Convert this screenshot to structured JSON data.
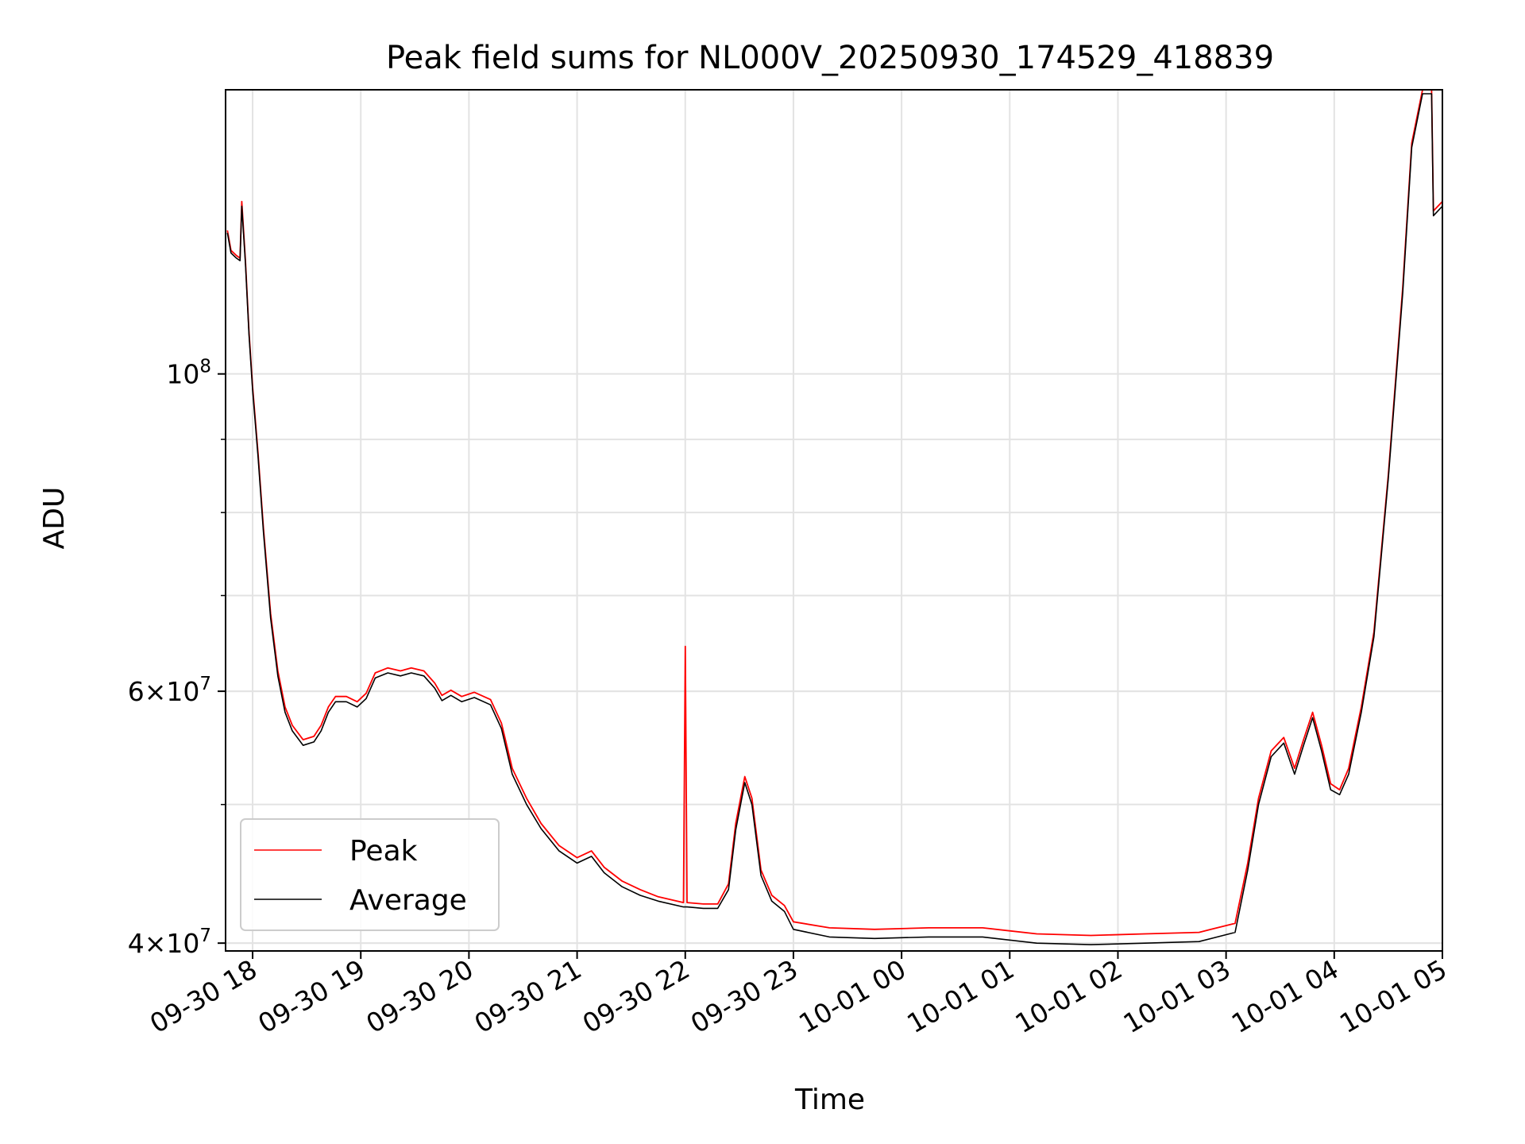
{
  "chart_data": {
    "type": "line",
    "title": "Peak field sums for NL000V_20250930_174529_418839",
    "xlabel": "Time",
    "ylabel": "ADU",
    "yscale": "log",
    "grid": true,
    "legend_position": "lower-left",
    "xlim": [
      "2025-09-30 17:45",
      "2025-10-01 05:00"
    ],
    "ylim": [
      39500000,
      158000000
    ],
    "x_ticks": [
      {
        "value": "2025-09-30 18:00",
        "label": "09-30 18"
      },
      {
        "value": "2025-09-30 19:00",
        "label": "09-30 19"
      },
      {
        "value": "2025-09-30 20:00",
        "label": "09-30 20"
      },
      {
        "value": "2025-09-30 21:00",
        "label": "09-30 21"
      },
      {
        "value": "2025-09-30 22:00",
        "label": "09-30 22"
      },
      {
        "value": "2025-09-30 23:00",
        "label": "09-30 23"
      },
      {
        "value": "2025-10-01 00:00",
        "label": "10-01 00"
      },
      {
        "value": "2025-10-01 01:00",
        "label": "10-01 01"
      },
      {
        "value": "2025-10-01 02:00",
        "label": "10-01 02"
      },
      {
        "value": "2025-10-01 03:00",
        "label": "10-01 03"
      },
      {
        "value": "2025-10-01 04:00",
        "label": "10-01 04"
      },
      {
        "value": "2025-10-01 05:00",
        "label": "10-01 05"
      }
    ],
    "y_ticks_major": [
      {
        "value": 100000000,
        "base": "10",
        "exp": "8"
      },
      {
        "value": 60000000,
        "mant": "6",
        "exp": "7"
      },
      {
        "value": 40000000,
        "mant": "4",
        "exp": "7"
      }
    ],
    "y_ticks_minor": [
      40000000,
      50000000,
      60000000,
      70000000,
      80000000,
      90000000
    ],
    "series": [
      {
        "name": "Peak",
        "color": "#ff0000",
        "points": [
          [
            "2025-09-30 17:46",
            126000000
          ],
          [
            "2025-09-30 17:48",
            122000000
          ],
          [
            "2025-09-30 17:51",
            121000000
          ],
          [
            "2025-09-30 17:53",
            120500000
          ],
          [
            "2025-09-30 17:54",
            132000000
          ],
          [
            "2025-09-30 17:56",
            120000000
          ],
          [
            "2025-09-30 17:58",
            107000000
          ],
          [
            "2025-09-30 18:00",
            98000000
          ],
          [
            "2025-09-30 18:03",
            88000000
          ],
          [
            "2025-09-30 18:06",
            78000000
          ],
          [
            "2025-09-30 18:10",
            68000000
          ],
          [
            "2025-09-30 18:14",
            62000000
          ],
          [
            "2025-09-30 18:18",
            58500000
          ],
          [
            "2025-09-30 18:22",
            56800000
          ],
          [
            "2025-09-30 18:28",
            55500000
          ],
          [
            "2025-09-30 18:34",
            55800000
          ],
          [
            "2025-09-30 18:38",
            56800000
          ],
          [
            "2025-09-30 18:42",
            58500000
          ],
          [
            "2025-09-30 18:46",
            59500000
          ],
          [
            "2025-09-30 18:52",
            59500000
          ],
          [
            "2025-09-30 18:58",
            59000000
          ],
          [
            "2025-09-30 19:03",
            59800000
          ],
          [
            "2025-09-30 19:08",
            61800000
          ],
          [
            "2025-09-30 19:15",
            62300000
          ],
          [
            "2025-09-30 19:22",
            62000000
          ],
          [
            "2025-09-30 19:28",
            62300000
          ],
          [
            "2025-09-30 19:35",
            62000000
          ],
          [
            "2025-09-30 19:41",
            60800000
          ],
          [
            "2025-09-30 19:45",
            59600000
          ],
          [
            "2025-09-30 19:50",
            60100000
          ],
          [
            "2025-09-30 19:56",
            59500000
          ],
          [
            "2025-09-30 20:03",
            59900000
          ],
          [
            "2025-09-30 20:12",
            59200000
          ],
          [
            "2025-09-30 20:18",
            57000000
          ],
          [
            "2025-09-30 20:24",
            53000000
          ],
          [
            "2025-09-30 20:32",
            50500000
          ],
          [
            "2025-09-30 20:40",
            48500000
          ],
          [
            "2025-09-30 20:50",
            46800000
          ],
          [
            "2025-09-30 21:00",
            45900000
          ],
          [
            "2025-09-30 21:08",
            46400000
          ],
          [
            "2025-09-30 21:15",
            45200000
          ],
          [
            "2025-09-30 21:25",
            44200000
          ],
          [
            "2025-09-30 21:35",
            43600000
          ],
          [
            "2025-09-30 21:45",
            43100000
          ],
          [
            "2025-09-30 21:59",
            42700000
          ],
          [
            "2025-09-30 22:00",
            64500000
          ],
          [
            "2025-09-30 22:01",
            42700000
          ],
          [
            "2025-09-30 22:10",
            42600000
          ],
          [
            "2025-09-30 22:18",
            42600000
          ],
          [
            "2025-09-30 22:24",
            44000000
          ],
          [
            "2025-09-30 22:28",
            48500000
          ],
          [
            "2025-09-30 22:33",
            52300000
          ],
          [
            "2025-09-30 22:37",
            50500000
          ],
          [
            "2025-09-30 22:42",
            45000000
          ],
          [
            "2025-09-30 22:48",
            43200000
          ],
          [
            "2025-09-30 22:55",
            42500000
          ],
          [
            "2025-09-30 23:00",
            41400000
          ],
          [
            "2025-09-30 23:20",
            41000000
          ],
          [
            "2025-09-30 23:45",
            40900000
          ],
          [
            "2025-10-01 00:15",
            41000000
          ],
          [
            "2025-10-01 00:45",
            41000000
          ],
          [
            "2025-10-01 01:15",
            40600000
          ],
          [
            "2025-10-01 01:45",
            40500000
          ],
          [
            "2025-10-01 02:15",
            40600000
          ],
          [
            "2025-10-01 02:45",
            40700000
          ],
          [
            "2025-10-01 03:05",
            41300000
          ],
          [
            "2025-10-01 03:12",
            45500000
          ],
          [
            "2025-10-01 03:18",
            50500000
          ],
          [
            "2025-10-01 03:25",
            54500000
          ],
          [
            "2025-10-01 03:32",
            55700000
          ],
          [
            "2025-10-01 03:38",
            53000000
          ],
          [
            "2025-10-01 03:43",
            55500000
          ],
          [
            "2025-10-01 03:48",
            58000000
          ],
          [
            "2025-10-01 03:53",
            55000000
          ],
          [
            "2025-10-01 03:58",
            51700000
          ],
          [
            "2025-10-01 04:03",
            51200000
          ],
          [
            "2025-10-01 04:08",
            53000000
          ],
          [
            "2025-10-01 04:15",
            58500000
          ],
          [
            "2025-10-01 04:22",
            66000000
          ],
          [
            "2025-10-01 04:30",
            85000000
          ],
          [
            "2025-10-01 04:38",
            115000000
          ],
          [
            "2025-10-01 04:43",
            145000000
          ],
          [
            "2025-10-01 04:49",
            158000000
          ],
          [
            "2025-10-01 04:54",
            158000000
          ],
          [
            "2025-10-01 04:55",
            130000000
          ],
          [
            "2025-10-01 05:00",
            132000000
          ]
        ]
      },
      {
        "name": "Average",
        "color": "#000000",
        "points": [
          [
            "2025-09-30 17:46",
            125500000
          ],
          [
            "2025-09-30 17:48",
            121500000
          ],
          [
            "2025-09-30 17:51",
            120500000
          ],
          [
            "2025-09-30 17:53",
            120000000
          ],
          [
            "2025-09-30 17:54",
            131000000
          ],
          [
            "2025-09-30 17:56",
            119500000
          ],
          [
            "2025-09-30 17:58",
            106500000
          ],
          [
            "2025-09-30 18:00",
            97500000
          ],
          [
            "2025-09-30 18:03",
            87500000
          ],
          [
            "2025-09-30 18:06",
            77500000
          ],
          [
            "2025-09-30 18:10",
            67500000
          ],
          [
            "2025-09-30 18:14",
            61500000
          ],
          [
            "2025-09-30 18:18",
            58000000
          ],
          [
            "2025-09-30 18:22",
            56300000
          ],
          [
            "2025-09-30 18:28",
            55000000
          ],
          [
            "2025-09-30 18:34",
            55300000
          ],
          [
            "2025-09-30 18:38",
            56300000
          ],
          [
            "2025-09-30 18:42",
            58000000
          ],
          [
            "2025-09-30 18:46",
            59000000
          ],
          [
            "2025-09-30 18:52",
            59000000
          ],
          [
            "2025-09-30 18:58",
            58500000
          ],
          [
            "2025-09-30 19:03",
            59300000
          ],
          [
            "2025-09-30 19:08",
            61300000
          ],
          [
            "2025-09-30 19:15",
            61800000
          ],
          [
            "2025-09-30 19:22",
            61500000
          ],
          [
            "2025-09-30 19:28",
            61800000
          ],
          [
            "2025-09-30 19:35",
            61500000
          ],
          [
            "2025-09-30 19:41",
            60300000
          ],
          [
            "2025-09-30 19:45",
            59100000
          ],
          [
            "2025-09-30 19:50",
            59600000
          ],
          [
            "2025-09-30 19:56",
            59000000
          ],
          [
            "2025-09-30 20:03",
            59400000
          ],
          [
            "2025-09-30 20:12",
            58700000
          ],
          [
            "2025-09-30 20:18",
            56500000
          ],
          [
            "2025-09-30 20:24",
            52500000
          ],
          [
            "2025-09-30 20:32",
            50000000
          ],
          [
            "2025-09-30 20:40",
            48100000
          ],
          [
            "2025-09-30 20:50",
            46400000
          ],
          [
            "2025-09-30 21:00",
            45500000
          ],
          [
            "2025-09-30 21:08",
            46000000
          ],
          [
            "2025-09-30 21:15",
            44800000
          ],
          [
            "2025-09-30 21:25",
            43800000
          ],
          [
            "2025-09-30 21:35",
            43200000
          ],
          [
            "2025-09-30 21:45",
            42800000
          ],
          [
            "2025-09-30 21:59",
            42400000
          ],
          [
            "2025-09-30 22:01",
            42400000
          ],
          [
            "2025-09-30 22:10",
            42300000
          ],
          [
            "2025-09-30 22:18",
            42300000
          ],
          [
            "2025-09-30 22:24",
            43600000
          ],
          [
            "2025-09-30 22:28",
            48000000
          ],
          [
            "2025-09-30 22:33",
            51800000
          ],
          [
            "2025-09-30 22:37",
            50000000
          ],
          [
            "2025-09-30 22:42",
            44600000
          ],
          [
            "2025-09-30 22:48",
            42800000
          ],
          [
            "2025-09-30 22:55",
            42100000
          ],
          [
            "2025-09-30 23:00",
            40900000
          ],
          [
            "2025-09-30 23:20",
            40400000
          ],
          [
            "2025-09-30 23:45",
            40300000
          ],
          [
            "2025-10-01 00:15",
            40400000
          ],
          [
            "2025-10-01 00:45",
            40400000
          ],
          [
            "2025-10-01 01:15",
            40000000
          ],
          [
            "2025-10-01 01:45",
            39900000
          ],
          [
            "2025-10-01 02:15",
            40000000
          ],
          [
            "2025-10-01 02:45",
            40100000
          ],
          [
            "2025-10-01 03:05",
            40700000
          ],
          [
            "2025-10-01 03:12",
            45000000
          ],
          [
            "2025-10-01 03:18",
            50000000
          ],
          [
            "2025-10-01 03:25",
            54000000
          ],
          [
            "2025-10-01 03:32",
            55200000
          ],
          [
            "2025-10-01 03:38",
            52500000
          ],
          [
            "2025-10-01 03:43",
            55000000
          ],
          [
            "2025-10-01 03:48",
            57500000
          ],
          [
            "2025-10-01 03:53",
            54500000
          ],
          [
            "2025-10-01 03:58",
            51200000
          ],
          [
            "2025-10-01 04:03",
            50800000
          ],
          [
            "2025-10-01 04:08",
            52500000
          ],
          [
            "2025-10-01 04:15",
            58000000
          ],
          [
            "2025-10-01 04:22",
            65500000
          ],
          [
            "2025-10-01 04:30",
            84500000
          ],
          [
            "2025-10-01 04:38",
            114000000
          ],
          [
            "2025-10-01 04:43",
            144000000
          ],
          [
            "2025-10-01 04:49",
            157000000
          ],
          [
            "2025-10-01 04:54",
            157000000
          ],
          [
            "2025-10-01 04:55",
            129000000
          ],
          [
            "2025-10-01 05:00",
            131000000
          ]
        ]
      }
    ]
  }
}
